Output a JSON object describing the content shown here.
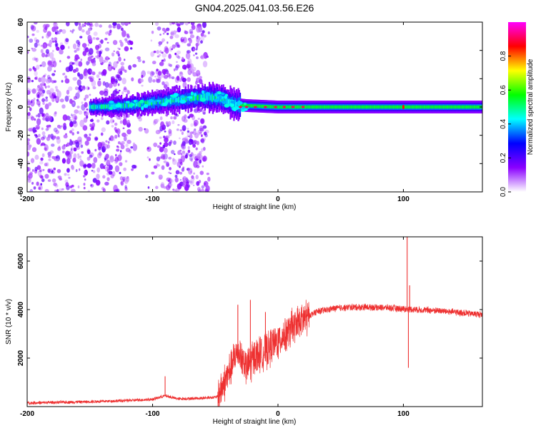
{
  "title": "GN04.2025.041.03.56.E26",
  "chart_data": [
    {
      "type": "heatmap",
      "xlabel": "Height of straight line (km)",
      "ylabel": "Frequency (Hz)",
      "xlim": [
        -200,
        163
      ],
      "ylim": [
        -60,
        60
      ],
      "xticks": [
        -200,
        -100,
        0,
        100
      ],
      "xtick_labels": [
        "-200",
        "-100",
        "0",
        "100"
      ],
      "yticks": [
        -60,
        -40,
        -20,
        0,
        20,
        40,
        60
      ],
      "ytick_labels": [
        "-60",
        "-40",
        "-20",
        "0",
        "20",
        "40",
        "60"
      ],
      "colorbar": {
        "label": "Normalized spectral amplitude",
        "range": [
          0,
          1
        ],
        "ticks": [
          0,
          0.2,
          0.4,
          0.6,
          0.8
        ],
        "tick_labels": [
          "0.0",
          "0.2",
          "0.4",
          "0.6",
          "0.8"
        ],
        "colors": [
          "#ffffff",
          "#8a00ff",
          "#0000ff",
          "#00ffff",
          "#00ff00",
          "#ffff00",
          "#ff0000",
          "#ff00ff"
        ]
      },
      "band_center": [
        {
          "x": -145,
          "y": 0
        },
        {
          "x": -120,
          "y": 1
        },
        {
          "x": -100,
          "y": 3
        },
        {
          "x": -80,
          "y": 5
        },
        {
          "x": -60,
          "y": 7
        },
        {
          "x": -45,
          "y": 6
        },
        {
          "x": -35,
          "y": 2
        },
        {
          "x": -25,
          "y": 1
        },
        {
          "x": 0,
          "y": 0
        },
        {
          "x": 50,
          "y": 0
        },
        {
          "x": 100,
          "y": 0
        },
        {
          "x": 163,
          "y": 0
        }
      ]
    },
    {
      "type": "line",
      "xlabel": "Height of straight line (km)",
      "ylabel": "SNR (10 * v/v)",
      "xlim": [
        -200,
        163
      ],
      "ylim": [
        0,
        7000
      ],
      "xticks": [
        -200,
        -100,
        0,
        100
      ],
      "xtick_labels": [
        "-200",
        "-100",
        "0",
        "100"
      ],
      "yticks": [
        2000,
        4000,
        6000
      ],
      "ytick_labels": [
        "2000",
        "4000",
        "6000"
      ],
      "color": "#ee3030",
      "envelope": [
        {
          "x": -200,
          "y": 150
        },
        {
          "x": -150,
          "y": 200
        },
        {
          "x": -120,
          "y": 250
        },
        {
          "x": -100,
          "y": 300
        },
        {
          "x": -90,
          "y": 450
        },
        {
          "x": -80,
          "y": 320
        },
        {
          "x": -60,
          "y": 350
        },
        {
          "x": -48,
          "y": 400
        },
        {
          "x": -40,
          "y": 1300
        },
        {
          "x": -32,
          "y": 2300
        },
        {
          "x": -25,
          "y": 1600
        },
        {
          "x": -18,
          "y": 2100
        },
        {
          "x": -10,
          "y": 2300
        },
        {
          "x": 0,
          "y": 2700
        },
        {
          "x": 10,
          "y": 3200
        },
        {
          "x": 20,
          "y": 3600
        },
        {
          "x": 30,
          "y": 3900
        },
        {
          "x": 45,
          "y": 4050
        },
        {
          "x": 60,
          "y": 4100
        },
        {
          "x": 80,
          "y": 4100
        },
        {
          "x": 95,
          "y": 4050
        },
        {
          "x": 110,
          "y": 4000
        },
        {
          "x": 130,
          "y": 3950
        },
        {
          "x": 150,
          "y": 3850
        },
        {
          "x": 163,
          "y": 3800
        }
      ],
      "spikes": [
        {
          "x": -90,
          "y": 1250
        },
        {
          "x": -32,
          "y": 4200
        },
        {
          "x": -22,
          "y": 4400
        },
        {
          "x": -10,
          "y": 3900
        },
        {
          "x": 103,
          "y": 7000
        },
        {
          "x": 104,
          "y": 1600
        },
        {
          "x": 105,
          "y": 5000
        }
      ]
    }
  ]
}
